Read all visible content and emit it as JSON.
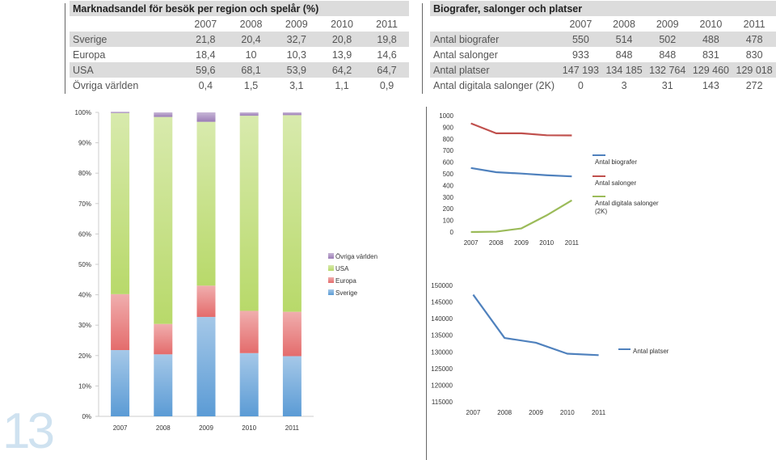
{
  "page_number": "13",
  "colors": {
    "sverige": "#5b9bd5",
    "europa": "#e46c6c",
    "usa": "#b8d96a",
    "ovriga": "#9b7cb6",
    "biografer": "#4f81bd",
    "salonger": "#c0504d",
    "digitala": "#9bbb59",
    "platser": "#4f81bd",
    "row_shade": "#dcdcdc"
  },
  "table1": {
    "title": "Marknadsandel för besök per region och spelår (%)",
    "years": [
      "2007",
      "2008",
      "2009",
      "2010",
      "2011"
    ],
    "rows": [
      {
        "label": "Sverige",
        "values": [
          "21,8",
          "20,4",
          "32,7",
          "20,8",
          "19,8"
        ]
      },
      {
        "label": "Europa",
        "values": [
          "18,4",
          "10",
          "10,3",
          "13,9",
          "14,6"
        ]
      },
      {
        "label": "USA",
        "values": [
          "59,6",
          "68,1",
          "53,9",
          "64,2",
          "64,7"
        ]
      },
      {
        "label": "Övriga världen",
        "values": [
          "0,4",
          "1,5",
          "3,1",
          "1,1",
          "0,9"
        ]
      }
    ]
  },
  "table2": {
    "title": "Biografer, salonger och platser",
    "years": [
      "2007",
      "2008",
      "2009",
      "2010",
      "2011"
    ],
    "rows": [
      {
        "label": "Antal biografer",
        "values": [
          "550",
          "514",
          "502",
          "488",
          "478"
        ]
      },
      {
        "label": "Antal salonger",
        "values": [
          "933",
          "848",
          "848",
          "831",
          "830"
        ]
      },
      {
        "label": "Antal platser",
        "values": [
          "147 193",
          "134 185",
          "132 764",
          "129 460",
          "129 018"
        ]
      },
      {
        "label": "Antal digitala salonger (2K)",
        "values": [
          "0",
          "3",
          "31",
          "143",
          "272"
        ]
      }
    ]
  },
  "chart_data": [
    {
      "type": "bar",
      "stacked": true,
      "percent": true,
      "categories": [
        "2007",
        "2008",
        "2009",
        "2010",
        "2011"
      ],
      "y_ticks": [
        "0%",
        "10%",
        "20%",
        "30%",
        "40%",
        "50%",
        "60%",
        "70%",
        "80%",
        "90%",
        "100%"
      ],
      "ylim": [
        0,
        100
      ],
      "series": [
        {
          "name": "Sverige",
          "color_key": "sverige",
          "values": [
            21.8,
            20.4,
            32.7,
            20.8,
            19.8
          ]
        },
        {
          "name": "Europa",
          "color_key": "europa",
          "values": [
            18.4,
            10,
            10.3,
            13.9,
            14.6
          ]
        },
        {
          "name": "USA",
          "color_key": "usa",
          "values": [
            59.6,
            68.1,
            53.9,
            64.2,
            64.7
          ]
        },
        {
          "name": "Övriga världen",
          "color_key": "ovriga",
          "values": [
            0.4,
            1.5,
            3.1,
            1.1,
            0.9
          ]
        }
      ],
      "legend_order": [
        "Övriga världen",
        "USA",
        "Europa",
        "Sverige"
      ]
    },
    {
      "type": "line",
      "x": [
        "2007",
        "2008",
        "2009",
        "2010",
        "2011"
      ],
      "ylim": [
        0,
        1000
      ],
      "y_ticks": [
        "0",
        "100",
        "200",
        "300",
        "400",
        "500",
        "600",
        "700",
        "800",
        "900",
        "1000"
      ],
      "series": [
        {
          "name": "Antal biografer",
          "color_key": "biografer",
          "values": [
            550,
            514,
            502,
            488,
            478
          ]
        },
        {
          "name": "Antal salonger",
          "color_key": "salonger",
          "values": [
            933,
            848,
            848,
            831,
            830
          ]
        },
        {
          "name": "Antal digitala salonger (2K)",
          "name_lines": [
            "Antal digitala salonger",
            "(2K)"
          ],
          "color_key": "digitala",
          "values": [
            0,
            3,
            31,
            143,
            272
          ]
        }
      ]
    },
    {
      "type": "line",
      "x": [
        "2007",
        "2008",
        "2009",
        "2010",
        "2011"
      ],
      "ylim": [
        115000,
        150000
      ],
      "y_ticks": [
        "115000",
        "120000",
        "125000",
        "130000",
        "135000",
        "140000",
        "145000",
        "150000"
      ],
      "series": [
        {
          "name": "Antal platser",
          "color_key": "platser",
          "values": [
            147193,
            134185,
            132764,
            129460,
            129018
          ]
        }
      ]
    }
  ]
}
